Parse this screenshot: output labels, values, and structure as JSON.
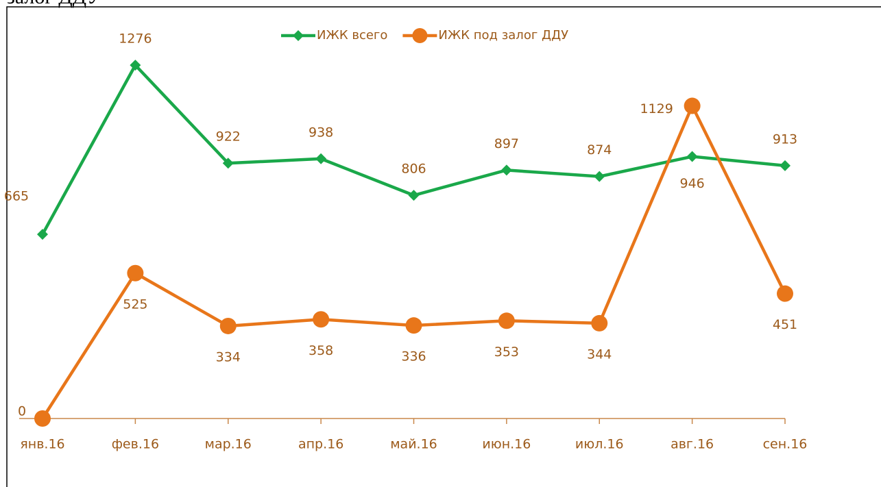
{
  "chart_data": {
    "type": "line",
    "title": "залог ДДУ",
    "categories": [
      "янв.16",
      "фев.16",
      "мар.16",
      "апр.16",
      "май.16",
      "июн.16",
      "июл.16",
      "авг.16",
      "сен.16"
    ],
    "series": [
      {
        "name": "ИЖК всего",
        "color": "#1aa84a",
        "marker": "diamond",
        "values": [
          665,
          1276,
          922,
          938,
          806,
          897,
          874,
          946,
          913
        ]
      },
      {
        "name": "ИЖК под залог ДДУ",
        "color": "#e8761a",
        "marker": "circle",
        "values": [
          0,
          525,
          334,
          358,
          336,
          353,
          344,
          1129,
          451
        ]
      }
    ],
    "ylim": [
      0,
      1400
    ],
    "legend": "top"
  }
}
